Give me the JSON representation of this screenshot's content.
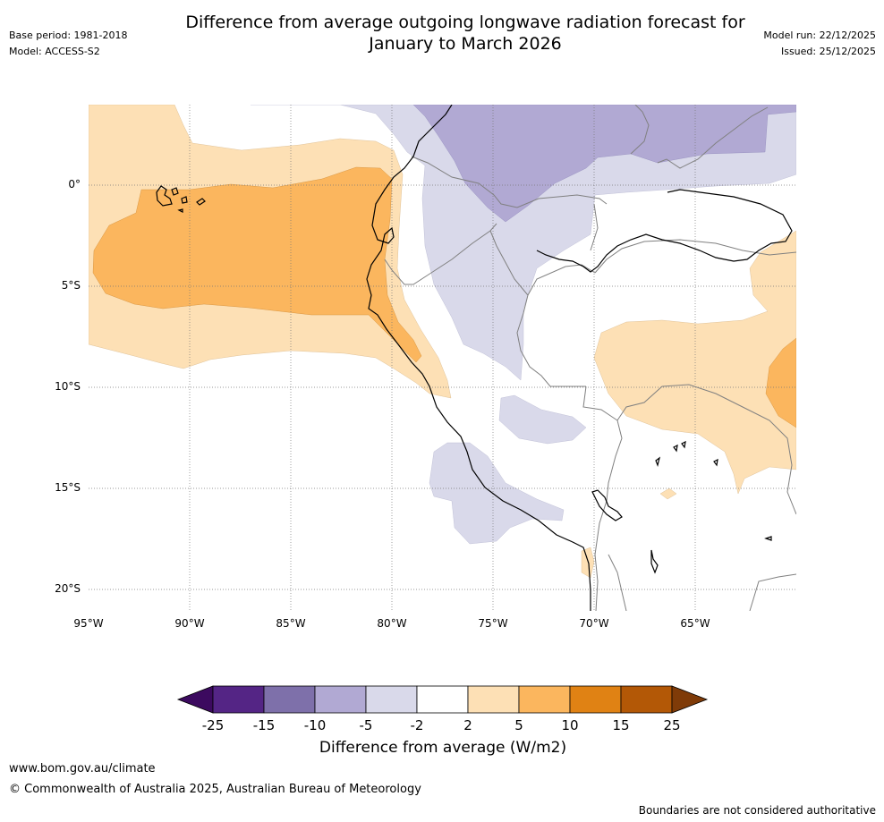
{
  "header": {
    "title_line1": "Difference from average outgoing longwave radiation forecast for",
    "title_line2": "January to March 2026",
    "base_period": "Base period: 1981-2018",
    "model": "Model: ACCESS-S2",
    "model_run": "Model run: 22/12/2025",
    "issued": "Issued: 25/12/2025"
  },
  "map": {
    "lat_labels": [
      "0°",
      "5°S",
      "10°S",
      "15°S",
      "20°S"
    ],
    "lon_labels": [
      "95°W",
      "90°W",
      "85°W",
      "80°W",
      "75°W",
      "70°W",
      "65°W"
    ]
  },
  "colorbar": {
    "ticks": [
      "-25",
      "-15",
      "-10",
      "-5",
      "-2",
      "2",
      "5",
      "10",
      "15",
      "25"
    ],
    "colors": [
      "#3c0a5f",
      "#542585",
      "#7e70aa",
      "#b1a9d3",
      "#d9d9ea",
      "#ffffff",
      "#fde0b5",
      "#fbb65e",
      "#e08214",
      "#b35806",
      "#7f3b08"
    ],
    "label": "Difference from average (W/m2)"
  },
  "footer": {
    "url": "www.bom.gov.au/climate",
    "copyright": "© Commonwealth of Australia 2025, Australian Bureau of Meteorology",
    "disclaimer": "Boundaries are not considered authoritative"
  }
}
